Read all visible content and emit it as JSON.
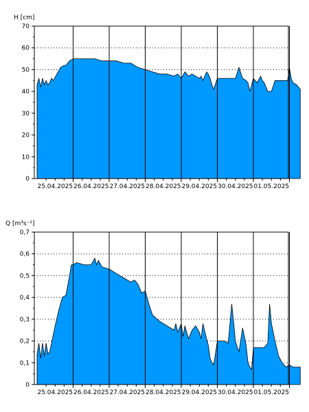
{
  "chart_data": [
    {
      "type": "area",
      "ylabel": "H [cm]",
      "ylim": [
        0,
        70
      ],
      "y_ticks": [
        "0",
        "10",
        "20",
        "30",
        "40",
        "50",
        "60",
        "70"
      ],
      "x_ticks": [
        "25.04.2025",
        "26.04.2025",
        "27.04.2025",
        "28.04.2025",
        "29.04.2025",
        "30.04.2025",
        "01.05.2025"
      ],
      "x_range_days": [
        0,
        7.3
      ],
      "grid": "dotted horizontal, solid vertical at day boundaries",
      "fill_color": "#0099ff",
      "series": [
        {
          "x": [
            0.0,
            0.05,
            0.1,
            0.15,
            0.2,
            0.25,
            0.3,
            0.35,
            0.4,
            0.45,
            0.55,
            0.65,
            0.75,
            0.8,
            0.9,
            1.0,
            1.2,
            1.4,
            1.6,
            1.8,
            2.0,
            2.2,
            2.4,
            2.6,
            2.8,
            3.0,
            3.2,
            3.4,
            3.6,
            3.8,
            3.9,
            4.0,
            4.1,
            4.2,
            4.3,
            4.5,
            4.55,
            4.6,
            4.7,
            4.75,
            4.8,
            4.85,
            4.9,
            5.0,
            5.1,
            5.2,
            5.3,
            5.4,
            5.5,
            5.6,
            5.7,
            5.8,
            5.85,
            5.9,
            6.0,
            6.1,
            6.2,
            6.25,
            6.3,
            6.4,
            6.5,
            6.6,
            6.7,
            6.8,
            6.9,
            6.95,
            7.0,
            7.05,
            7.1,
            7.2,
            7.3
          ],
          "y": [
            43,
            46,
            42,
            46,
            43,
            45,
            43,
            44,
            46,
            45,
            48,
            51,
            52,
            52,
            54,
            55,
            55,
            55,
            55,
            54,
            54,
            54,
            53,
            53,
            51,
            50,
            49,
            48,
            48,
            47,
            48,
            46,
            49,
            47,
            48,
            46,
            47,
            45,
            49,
            48,
            46,
            43,
            41,
            46,
            46,
            46,
            46,
            46,
            46,
            51,
            46,
            45,
            44,
            40,
            46,
            44,
            47,
            45,
            44,
            40,
            40,
            45,
            45,
            45,
            45,
            45,
            51,
            46,
            44,
            43,
            41
          ]
        }
      ]
    },
    {
      "type": "area",
      "ylabel": "Q [m³s⁻¹]",
      "ylim": [
        0,
        0.7
      ],
      "y_ticks": [
        "0",
        "0,1",
        "0,2",
        "0,3",
        "0,4",
        "0,5",
        "0,6",
        "0,7"
      ],
      "x_ticks": [
        "25.04.2025",
        "26.04.2025",
        "27.04.2025",
        "28.04.2025",
        "29.04.2025",
        "30.04.2025",
        "01.05.2025"
      ],
      "x_range_days": [
        0,
        7.3
      ],
      "grid": "dotted horizontal, solid vertical at day boundaries",
      "fill_color": "#0099ff",
      "series": [
        {
          "x": [
            0.0,
            0.05,
            0.1,
            0.15,
            0.2,
            0.25,
            0.3,
            0.35,
            0.4,
            0.5,
            0.6,
            0.7,
            0.8,
            0.9,
            0.95,
            1.0,
            1.1,
            1.3,
            1.5,
            1.6,
            1.65,
            1.7,
            1.8,
            2.0,
            2.2,
            2.4,
            2.6,
            2.7,
            2.8,
            2.9,
            3.0,
            3.1,
            3.2,
            3.4,
            3.6,
            3.8,
            3.85,
            3.9,
            4.0,
            4.05,
            4.1,
            4.2,
            4.3,
            4.4,
            4.5,
            4.55,
            4.6,
            4.7,
            4.75,
            4.8,
            4.85,
            4.9,
            5.0,
            5.2,
            5.3,
            5.4,
            5.45,
            5.5,
            5.6,
            5.7,
            5.8,
            5.85,
            5.9,
            5.95,
            6.0,
            6.3,
            6.4,
            6.45,
            6.5,
            6.6,
            6.7,
            6.8,
            6.9,
            7.0,
            7.1,
            7.3
          ],
          "y": [
            0.14,
            0.19,
            0.12,
            0.19,
            0.13,
            0.19,
            0.14,
            0.15,
            0.19,
            0.27,
            0.34,
            0.4,
            0.41,
            0.5,
            0.55,
            0.55,
            0.56,
            0.55,
            0.55,
            0.58,
            0.55,
            0.57,
            0.54,
            0.53,
            0.51,
            0.49,
            0.47,
            0.48,
            0.46,
            0.42,
            0.43,
            0.37,
            0.32,
            0.29,
            0.27,
            0.25,
            0.28,
            0.24,
            0.28,
            0.22,
            0.27,
            0.21,
            0.25,
            0.27,
            0.24,
            0.21,
            0.28,
            0.21,
            0.18,
            0.12,
            0.1,
            0.09,
            0.2,
            0.2,
            0.19,
            0.37,
            0.29,
            0.2,
            0.15,
            0.26,
            0.18,
            0.1,
            0.08,
            0.07,
            0.17,
            0.17,
            0.19,
            0.37,
            0.28,
            0.2,
            0.13,
            0.1,
            0.08,
            0.09,
            0.08,
            0.08
          ]
        }
      ]
    }
  ]
}
